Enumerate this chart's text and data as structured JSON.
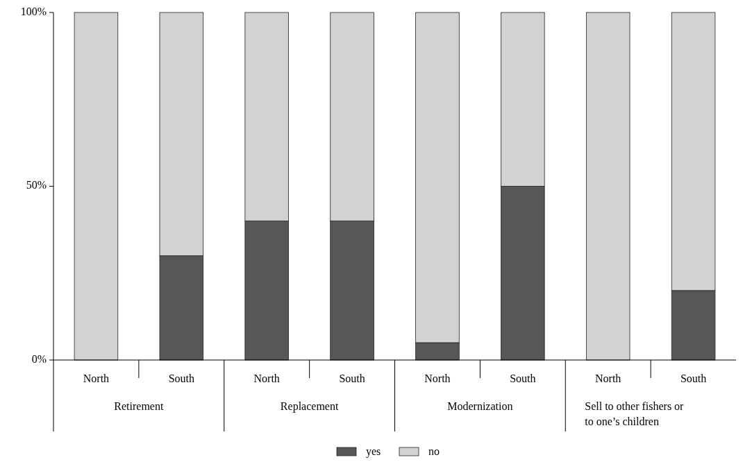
{
  "chart_data": {
    "type": "bar",
    "stacked": true,
    "categories": [
      "North",
      "South",
      "North",
      "South",
      "North",
      "South",
      "North",
      "South"
    ],
    "series": [
      {
        "name": "yes",
        "color": "#555759",
        "values": [
          0,
          30,
          40,
          40,
          5,
          50,
          0,
          20
        ]
      },
      {
        "name": "no",
        "color": "#d1d2d4",
        "values": [
          100,
          70,
          60,
          60,
          95,
          50,
          100,
          80
        ]
      }
    ],
    "ylim": [
      0,
      100
    ],
    "yticks": [
      {
        "value": 0,
        "label": "0%"
      },
      {
        "value": 50,
        "label": "50%"
      },
      {
        "value": 100,
        "label": "100%"
      }
    ],
    "annotations": [
      "Retirement",
      "Replacement",
      "Modernization",
      "Sell to other fishers or to one’s children"
    ],
    "legend": "bottom"
  }
}
